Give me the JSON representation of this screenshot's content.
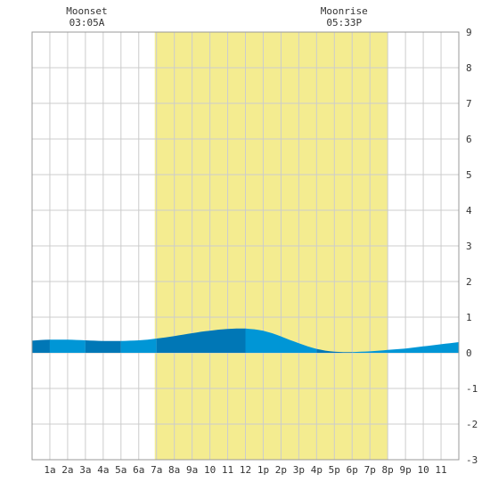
{
  "chart_data": {
    "type": "area",
    "title": "",
    "xlabel": "",
    "ylabel": "",
    "x_range_hours": [
      0,
      24
    ],
    "ylim": [
      -3,
      9
    ],
    "y_ticks": [
      "-3",
      "-2",
      "-1",
      "0",
      "1",
      "2",
      "3",
      "4",
      "5",
      "6",
      "7",
      "8",
      "9"
    ],
    "x_tick_labels": [
      "1a",
      "2a",
      "3a",
      "4a",
      "5a",
      "6a",
      "7a",
      "8a",
      "9a",
      "10",
      "11",
      "12",
      "1p",
      "2p",
      "3p",
      "4p",
      "5p",
      "6p",
      "7p",
      "8p",
      "9p",
      "10",
      "11"
    ],
    "grid": true,
    "daylight_hours": [
      6.9,
      20.0
    ],
    "annotations": [
      {
        "title": "Moonset",
        "time": "03:05A",
        "hour": 3.08
      },
      {
        "title": "Moonrise",
        "time": "05:33P",
        "hour": 17.55
      }
    ],
    "series": [
      {
        "x": [
          0,
          0.5,
          1,
          1.5,
          2,
          2.5,
          3,
          3.5,
          4,
          4.5,
          5,
          5.5,
          6,
          6.5,
          7,
          7.5,
          8,
          8.5,
          9,
          9.5,
          10,
          10.5,
          11,
          11.5,
          12,
          12.5,
          13,
          13.5,
          14,
          14.5,
          15,
          15.5,
          16,
          16.5,
          17,
          17.5,
          18,
          18.5,
          19,
          19.5,
          20,
          20.5,
          21,
          21.5,
          22,
          22.5,
          23,
          23.5,
          24
        ],
        "y": [
          0.34,
          0.36,
          0.37,
          0.37,
          0.37,
          0.36,
          0.35,
          0.34,
          0.33,
          0.33,
          0.33,
          0.34,
          0.35,
          0.37,
          0.4,
          0.43,
          0.47,
          0.51,
          0.55,
          0.59,
          0.62,
          0.65,
          0.67,
          0.68,
          0.68,
          0.66,
          0.62,
          0.55,
          0.46,
          0.36,
          0.27,
          0.18,
          0.11,
          0.06,
          0.03,
          0.02,
          0.02,
          0.03,
          0.04,
          0.06,
          0.08,
          0.1,
          0.12,
          0.15,
          0.18,
          0.21,
          0.24,
          0.27,
          0.3
        ]
      }
    ],
    "colors": {
      "daylight": "#f4ec90",
      "grid": "#cccccc",
      "frame": "#999999",
      "band_dark": "#0077b6",
      "band_light": "#0096d6"
    }
  }
}
